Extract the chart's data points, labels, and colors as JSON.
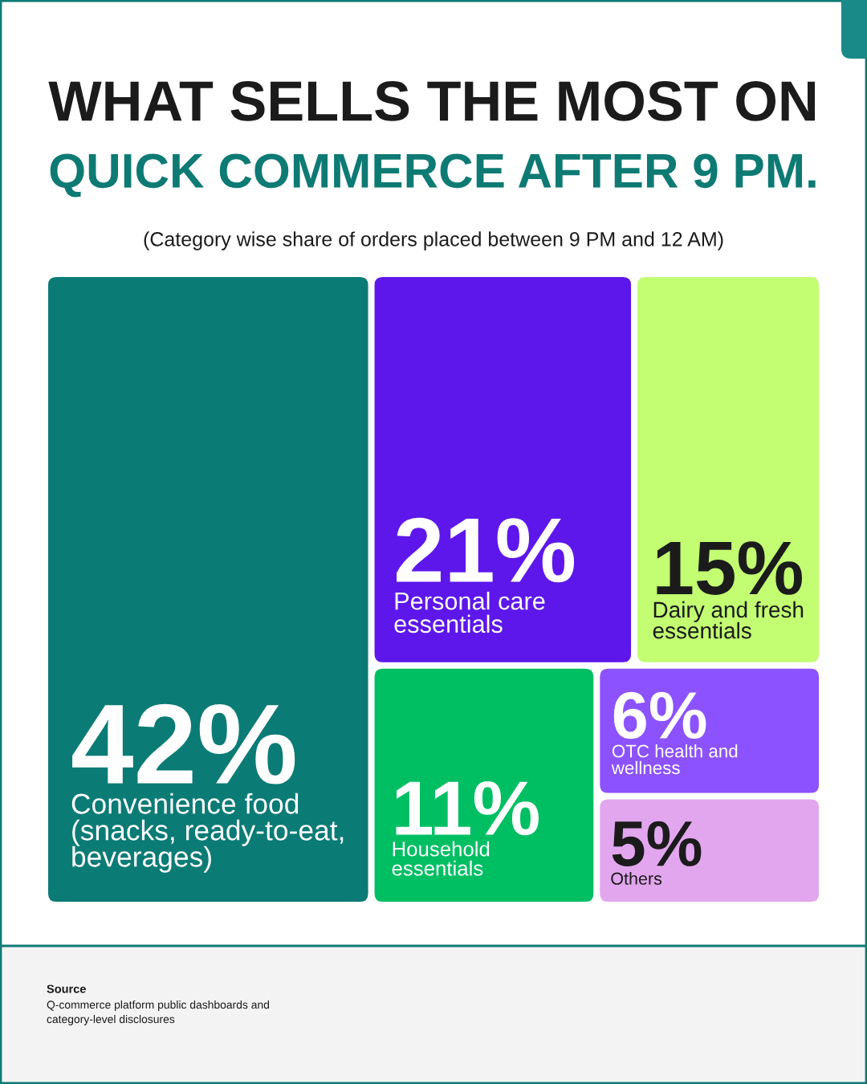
{
  "chart_data": {
    "type": "other",
    "title": "WHAT SELLS THE MOST ON\nQUICK COMMERCE AFTER 9 PM.",
    "subtitle": "(Category wise share of orders placed between 9 PM and 12 AM)",
    "categories": [
      "Convenience food\n(snacks, ready-to-eat,\nbeverages)",
      "Personal care\nessentials",
      "Dairy and fresh\nessentials",
      "Household\nessentials",
      "OTC health and\nwellness",
      "Others"
    ],
    "values": [
      42,
      21,
      15,
      11,
      6,
      5
    ],
    "value_labels": [
      "42%",
      "21%",
      "15%",
      "11%",
      "6%",
      "5%"
    ],
    "colors": [
      "#0b7b76",
      "#5d17eb",
      "#c2fd72",
      "#00bf63",
      "#8c52ff",
      "#e2a6ee"
    ],
    "annotations": [
      "Source",
      "Q-commerce platform public dashboards and\ncategory-level disclosures"
    ]
  }
}
